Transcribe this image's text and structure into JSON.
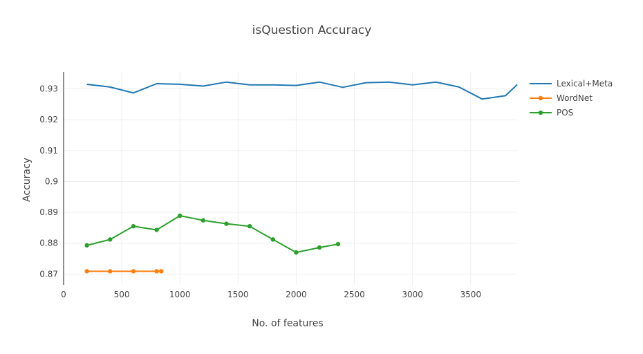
{
  "chart_data": {
    "type": "line",
    "title": "isQuestion Accuracy",
    "xlabel": "No. of features",
    "ylabel": "Accuracy",
    "xlim": [
      0,
      3900
    ],
    "ylim": [
      0.8665,
      0.9355
    ],
    "x_ticks": [
      0,
      500,
      1000,
      1500,
      2000,
      2500,
      3000,
      3500
    ],
    "x_tick_labels": [
      "0",
      "500",
      "1000",
      "1500",
      "2000",
      "2500",
      "3000",
      "3500"
    ],
    "y_ticks": [
      0.87,
      0.88,
      0.89,
      0.9,
      0.91,
      0.92,
      0.93
    ],
    "y_tick_labels": [
      "0.87",
      "0.88",
      "0.89",
      "0.9",
      "0.91",
      "0.92",
      "0.93"
    ],
    "grid": true,
    "legend_position": "right",
    "series": [
      {
        "name": "Lexical+Meta",
        "color": "#1f77b4",
        "markers": false,
        "x": [
          200,
          400,
          600,
          800,
          1000,
          1200,
          1400,
          1600,
          1800,
          2000,
          2200,
          2400,
          2600,
          2800,
          3000,
          3200,
          3400,
          3600,
          3800,
          3900
        ],
        "y": [
          0.9315,
          0.9306,
          0.9287,
          0.9317,
          0.9315,
          0.9309,
          0.9322,
          0.9313,
          0.9313,
          0.9311,
          0.9322,
          0.9305,
          0.932,
          0.9322,
          0.9313,
          0.9322,
          0.9306,
          0.9267,
          0.9278,
          0.9314
        ]
      },
      {
        "name": "WordNet",
        "color": "#ff7f0e",
        "markers": true,
        "x": [
          200,
          400,
          600,
          800,
          840
        ],
        "y": [
          0.8709,
          0.8709,
          0.8709,
          0.8709,
          0.8709
        ]
      },
      {
        "name": "POS",
        "color": "#2ca02c",
        "markers": true,
        "x": [
          200,
          400,
          600,
          800,
          1000,
          1200,
          1400,
          1600,
          1800,
          2000,
          2200,
          2360
        ],
        "y": [
          0.8793,
          0.8812,
          0.8855,
          0.8843,
          0.8889,
          0.8874,
          0.8863,
          0.8855,
          0.8812,
          0.877,
          0.8786,
          0.8797
        ]
      }
    ]
  }
}
